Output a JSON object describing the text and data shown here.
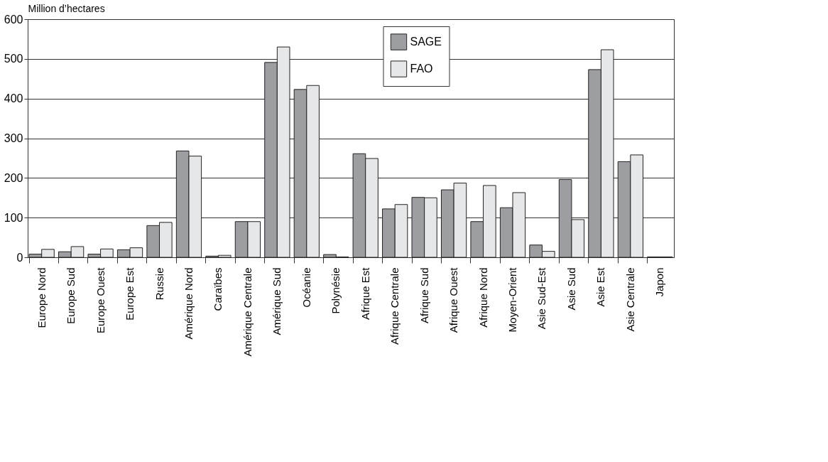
{
  "chart_data": {
    "type": "bar",
    "ylabel": "Million d’hectares",
    "categories": [
      "Europe Nord",
      "Europe Sud",
      "Europe Ouest",
      "Europe Est",
      "Russie",
      "Amérique Nord",
      "Caraïbes",
      "Amérique Centrale",
      "Amérique Sud",
      "Océanie",
      "Polynésie",
      "Afrique Est",
      "Afrique Centrale",
      "Afrique Sud",
      "Afrique Ouest",
      "Afrique Nord",
      "Moyen-Orient",
      "Asie Sud-Est",
      "Asie Sud",
      "Asie Est",
      "Asie Centrale",
      "Japon"
    ],
    "series": [
      {
        "name": "SAGE",
        "color": "#9d9ea2",
        "values": [
          8,
          14,
          8,
          19,
          80,
          268,
          3,
          90,
          491,
          423,
          7,
          261,
          122,
          151,
          170,
          90,
          125,
          31,
          196,
          473,
          241,
          1
        ]
      },
      {
        "name": "FAO",
        "color": "#e6e7e8",
        "values": [
          20,
          27,
          21,
          24,
          88,
          255,
          5,
          90,
          530,
          433,
          1,
          249,
          133,
          150,
          187,
          181,
          163,
          15,
          95,
          523,
          258,
          1
        ]
      }
    ],
    "ylim": [
      0,
      600
    ],
    "yticks": [
      0,
      100,
      200,
      300,
      400,
      500,
      600
    ],
    "grid": "y",
    "legend": "top"
  }
}
